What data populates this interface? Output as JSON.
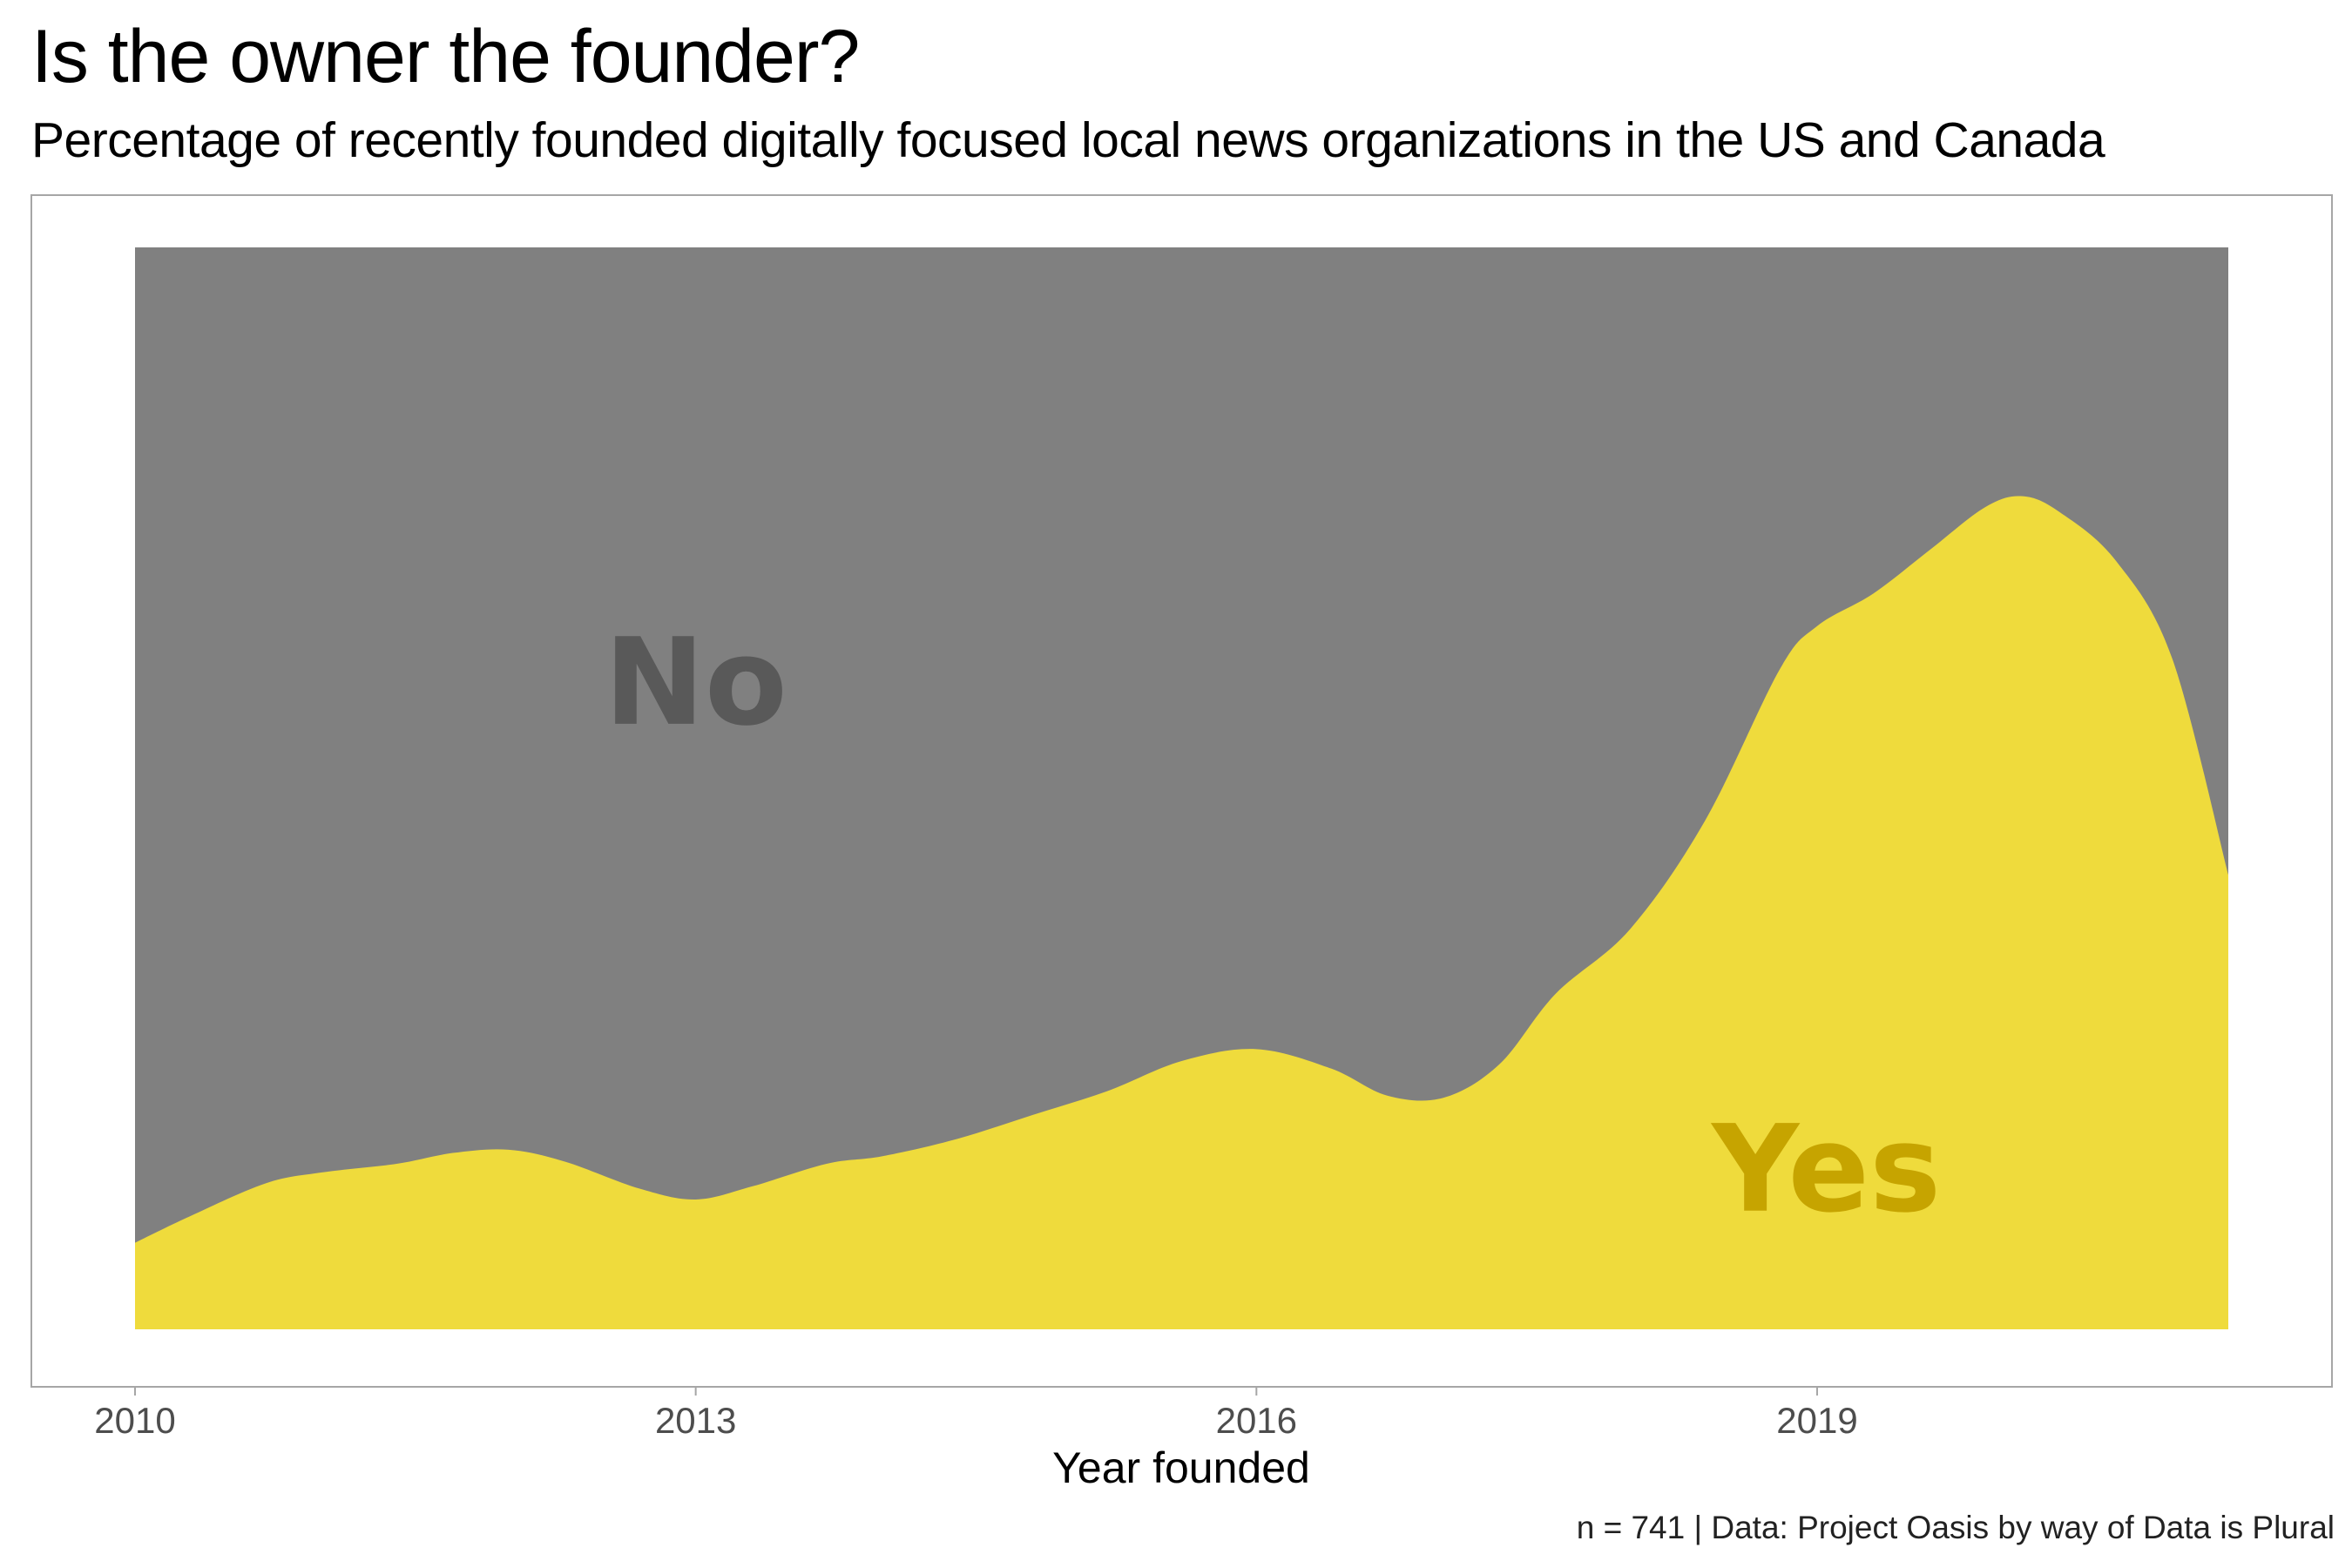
{
  "title": "Is the owner the founder?",
  "subtitle": "Percentage of recently founded digitally focused local news organizations in the US and Canada",
  "caption": "n = 741 | Data: Project Oasis by way of Data is Plural",
  "colors": {
    "no_fill": "#808080",
    "yes_fill": "#efdb3c",
    "no_label": "#595959",
    "yes_label": "#c6a400",
    "panel_border": "#a6a6a6",
    "axis_text": "#4d4d4d"
  },
  "chart_data": {
    "type": "area",
    "stacked": "100%",
    "xlabel": "Year founded",
    "ylabel": "",
    "xlim": [
      2010,
      2021.2
    ],
    "ylim": [
      0,
      100
    ],
    "x_ticks": [
      2010,
      2013,
      2016,
      2019
    ],
    "x_tick_labels": [
      "2010",
      "2013",
      "2016",
      "2019"
    ],
    "grid": false,
    "legend": "none",
    "x": [
      2010,
      2010.3,
      2010.7,
      2011,
      2011.4,
      2011.7,
      2012,
      2012.3,
      2012.7,
      2013,
      2013.3,
      2013.7,
      2014,
      2014.4,
      2014.8,
      2015.2,
      2015.6,
      2016,
      2016.4,
      2016.7,
      2017,
      2017.3,
      2017.6,
      2018,
      2018.4,
      2018.8,
      2019,
      2019.3,
      2019.6,
      2019.9,
      2020.1,
      2020.3,
      2020.6,
      2020.9,
      2021.2
    ],
    "series": [
      {
        "name": "Yes",
        "values": [
          8.0,
          10.5,
          13.5,
          14.5,
          15.3,
          16.3,
          16.6,
          15.5,
          13.0,
          12.0,
          13.2,
          15.3,
          16.0,
          17.6,
          19.8,
          22.0,
          24.8,
          25.9,
          24.1,
          21.6,
          21.4,
          24.5,
          31.0,
          37.0,
          47.0,
          61.0,
          65.0,
          68.0,
          72.0,
          76.0,
          77.0,
          75.5,
          71.0,
          62.0,
          42.0
        ]
      },
      {
        "name": "No",
        "values": [
          92.0,
          89.5,
          86.5,
          85.5,
          84.7,
          83.7,
          83.4,
          84.5,
          87.0,
          88.0,
          86.8,
          84.7,
          84.0,
          82.4,
          80.2,
          78.0,
          75.2,
          74.1,
          75.9,
          78.4,
          78.6,
          75.5,
          69.0,
          63.0,
          53.0,
          39.0,
          35.0,
          32.0,
          28.0,
          24.0,
          23.0,
          24.5,
          29.0,
          38.0,
          58.0
        ]
      }
    ],
    "annotations": [
      {
        "text": "No",
        "x": 2013.0,
        "y": 59,
        "color_key": "no_label"
      },
      {
        "text": "Yes",
        "x": 2019.05,
        "y": 14,
        "color_key": "yes_label"
      }
    ]
  }
}
